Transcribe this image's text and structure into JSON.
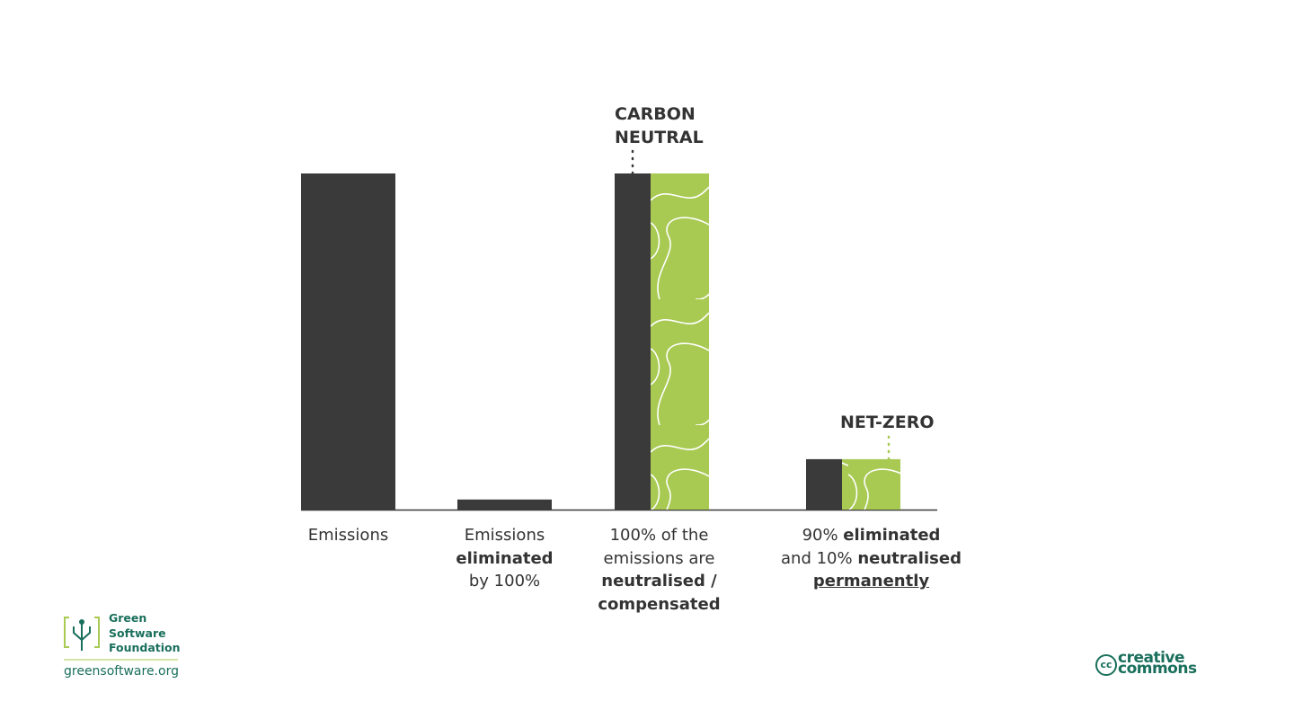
{
  "chart_data": {
    "type": "bar",
    "categories": [
      [
        [
          {
            "text": "Emissions"
          }
        ]
      ],
      [
        [
          {
            "text": "Emissions"
          }
        ],
        [
          {
            "text": "eliminated",
            "bold": true
          }
        ],
        [
          {
            "text": "by 100%"
          }
        ]
      ],
      [
        [
          {
            "text": "100% of the"
          }
        ],
        [
          {
            "text": "emissions are"
          }
        ],
        [
          {
            "text": "neutralised /",
            "bold": true
          }
        ],
        [
          {
            "text": "compensated",
            "bold": true
          }
        ]
      ],
      [
        [
          {
            "text": "90% "
          },
          {
            "text": "eliminated",
            "bold": true
          }
        ],
        [
          {
            "text": "and 10% "
          },
          {
            "text": "neutralised",
            "bold": true
          }
        ],
        [
          {
            "text": "permanently",
            "bold": true,
            "underline": true
          }
        ]
      ]
    ],
    "series": [
      {
        "color": "#3a3a3a",
        "values": [
          100,
          3,
          100,
          15
        ]
      },
      {
        "color": "#a8c952",
        "pattern": true,
        "values": [
          null,
          null,
          100,
          15
        ]
      }
    ],
    "annotations": [
      {
        "lines": [
          "CARBON",
          "NEUTRAL"
        ],
        "category": 2,
        "series": 0,
        "color": "#3a3a3a"
      },
      {
        "lines": [
          "NET-ZERO"
        ],
        "category": 3,
        "series": 1,
        "color": "#a8c952"
      }
    ]
  },
  "footer": {
    "logo_lines": [
      "Green",
      "Software",
      "Foundation"
    ],
    "url": "greensoftware.org",
    "license_symbol": "cc",
    "license_lines": [
      "creative",
      "commons"
    ]
  }
}
